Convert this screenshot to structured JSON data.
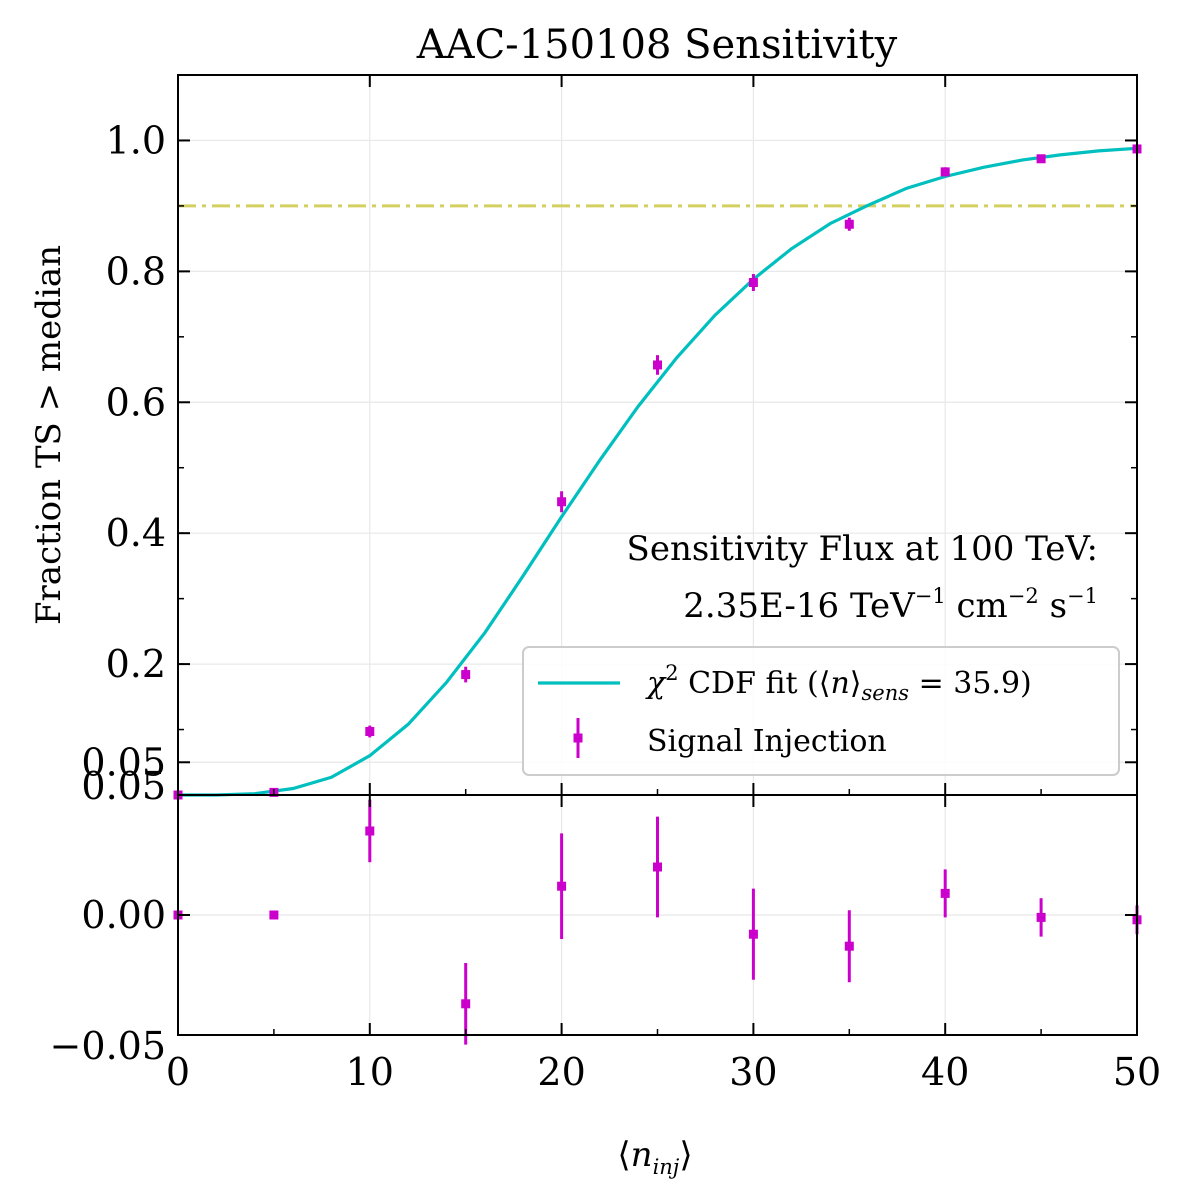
{
  "chart_data": [
    {
      "type": "line",
      "panel": "main",
      "title": "AAC-150108 Sensitivity",
      "ylabel": "Fraction TS > median",
      "xlim": [
        0,
        50
      ],
      "ylim": [
        0.0,
        1.1
      ],
      "yticks": [
        0.05,
        0.2,
        0.4,
        0.6,
        0.8,
        1.0
      ],
      "ytick_labels": [
        "0.05",
        "0.2",
        "0.4",
        "0.6",
        "0.8",
        "1.0"
      ],
      "grid": true,
      "threshold": {
        "y": 0.9,
        "style": "dash-dot",
        "color": "#d4d060"
      },
      "annotation": {
        "line1": "Sensitivity Flux at 100 TeV:",
        "value": "2.35E-16",
        "unit1": "TeV",
        "exp1": "−1",
        "unit2": "cm",
        "exp2": "−2",
        "unit3": "s",
        "exp3": "−1"
      },
      "legend": {
        "placement": "lower-right",
        "fit_label": "χ² CDF fit (⟨n⟩sens = 35.9)",
        "fit_label_parts": {
          "chi": "χ",
          "sup": "2",
          "pre": " CDF fit (⟨",
          "n": "n",
          "close": "⟩",
          "sub": "sens",
          "post": " = 35.9)"
        },
        "points_label": "Signal Injection"
      },
      "series": [
        {
          "name": "χ² CDF fit (⟨n⟩sens = 35.9)",
          "kind": "curve",
          "color": "#00bfbf",
          "x": [
            0,
            2,
            4,
            6,
            8,
            10,
            12,
            14,
            16,
            18,
            20,
            22,
            24,
            26,
            28,
            30,
            32,
            34,
            35.9,
            38,
            40,
            42,
            44,
            46,
            48,
            50
          ],
          "y": [
            0.0,
            0.0,
            0.002,
            0.01,
            0.027,
            0.06,
            0.108,
            0.172,
            0.248,
            0.335,
            0.425,
            0.512,
            0.594,
            0.668,
            0.733,
            0.788,
            0.835,
            0.873,
            0.9,
            0.927,
            0.945,
            0.959,
            0.97,
            0.978,
            0.984,
            0.988
          ]
        },
        {
          "name": "Signal Injection",
          "kind": "errorbar",
          "color": "#cc00cc",
          "x": [
            0,
            5,
            10,
            15,
            20,
            25,
            30,
            35,
            40,
            45,
            50
          ],
          "y": [
            0.0,
            0.004,
            0.097,
            0.184,
            0.448,
            0.657,
            0.783,
            0.872,
            0.952,
            0.972,
            0.987
          ],
          "yerr": [
            0.0,
            0.002,
            0.009,
            0.012,
            0.016,
            0.015,
            0.013,
            0.01,
            0.007,
            0.005,
            0.004
          ]
        }
      ]
    },
    {
      "type": "scatter",
      "panel": "residual",
      "xlabel": "⟨ninj⟩",
      "xlabel_parts": {
        "open": "⟨",
        "n": "n",
        "sub": "inj",
        "close": "⟩"
      },
      "xlim": [
        0,
        50
      ],
      "ylim": [
        -0.05,
        0.05
      ],
      "xticks": [
        0,
        10,
        20,
        30,
        40,
        50
      ],
      "yticks": [
        -0.05,
        0.0,
        0.05
      ],
      "ytick_labels": [
        "−0.05",
        "0.00",
        "0.05"
      ],
      "grid": true,
      "series": [
        {
          "name": "Signal Injection",
          "kind": "errorbar",
          "color": "#cc00cc",
          "x": [
            0,
            5,
            10,
            15,
            20,
            25,
            30,
            35,
            40,
            45,
            50
          ],
          "y": [
            0.0,
            0.0,
            0.035,
            -0.037,
            0.012,
            0.02,
            -0.008,
            -0.013,
            0.009,
            -0.001,
            -0.002
          ],
          "yerr": [
            0.0,
            0.0,
            0.013,
            0.017,
            0.022,
            0.021,
            0.019,
            0.015,
            0.01,
            0.008,
            0.006
          ]
        }
      ]
    }
  ]
}
